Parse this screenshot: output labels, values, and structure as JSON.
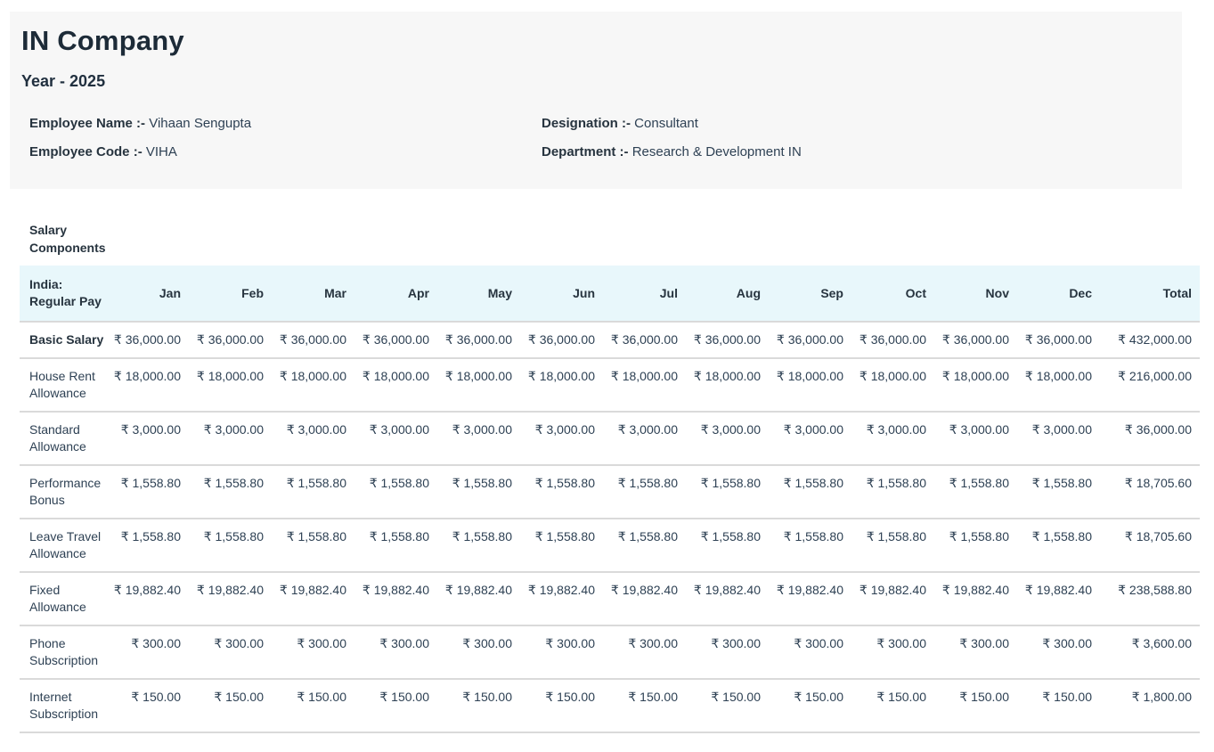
{
  "page": {
    "title": "IN Company",
    "subtitle": "Year - 2025"
  },
  "employee": {
    "name_label": "Employee Name :-",
    "name_value": "Vihaan Sengupta",
    "code_label": "Employee Code :-",
    "code_value": "VIHA",
    "designation_label": "Designation :-",
    "designation_value": "Consultant",
    "department_label": "Department :-",
    "department_value": "Research & Development IN"
  },
  "table": {
    "section_header": "Salary\nComponents",
    "group_header": "India:\nRegular Pay",
    "currency": "₹",
    "columns": [
      "Jan",
      "Feb",
      "Mar",
      "Apr",
      "May",
      "Jun",
      "Jul",
      "Aug",
      "Sep",
      "Oct",
      "Nov",
      "Dec",
      "Total"
    ],
    "rows": [
      {
        "label": "Basic Salary",
        "emphasis": true,
        "values": [
          "₹ 36,000.00",
          "₹ 36,000.00",
          "₹ 36,000.00",
          "₹ 36,000.00",
          "₹ 36,000.00",
          "₹ 36,000.00",
          "₹ 36,000.00",
          "₹ 36,000.00",
          "₹ 36,000.00",
          "₹ 36,000.00",
          "₹ 36,000.00",
          "₹ 36,000.00",
          "₹ 432,000.00"
        ]
      },
      {
        "label": "House Rent\nAllowance",
        "emphasis": false,
        "values": [
          "₹ 18,000.00",
          "₹ 18,000.00",
          "₹ 18,000.00",
          "₹ 18,000.00",
          "₹ 18,000.00",
          "₹ 18,000.00",
          "₹ 18,000.00",
          "₹ 18,000.00",
          "₹ 18,000.00",
          "₹ 18,000.00",
          "₹ 18,000.00",
          "₹ 18,000.00",
          "₹ 216,000.00"
        ]
      },
      {
        "label": "Standard\nAllowance",
        "emphasis": false,
        "values": [
          "₹ 3,000.00",
          "₹ 3,000.00",
          "₹ 3,000.00",
          "₹ 3,000.00",
          "₹ 3,000.00",
          "₹ 3,000.00",
          "₹ 3,000.00",
          "₹ 3,000.00",
          "₹ 3,000.00",
          "₹ 3,000.00",
          "₹ 3,000.00",
          "₹ 3,000.00",
          "₹ 36,000.00"
        ]
      },
      {
        "label": "Performance\nBonus",
        "emphasis": false,
        "values": [
          "₹ 1,558.80",
          "₹ 1,558.80",
          "₹ 1,558.80",
          "₹ 1,558.80",
          "₹ 1,558.80",
          "₹ 1,558.80",
          "₹ 1,558.80",
          "₹ 1,558.80",
          "₹ 1,558.80",
          "₹ 1,558.80",
          "₹ 1,558.80",
          "₹ 1,558.80",
          "₹ 18,705.60"
        ]
      },
      {
        "label": "Leave Travel\nAllowance",
        "emphasis": false,
        "values": [
          "₹ 1,558.80",
          "₹ 1,558.80",
          "₹ 1,558.80",
          "₹ 1,558.80",
          "₹ 1,558.80",
          "₹ 1,558.80",
          "₹ 1,558.80",
          "₹ 1,558.80",
          "₹ 1,558.80",
          "₹ 1,558.80",
          "₹ 1,558.80",
          "₹ 1,558.80",
          "₹ 18,705.60"
        ]
      },
      {
        "label": "Fixed\nAllowance",
        "emphasis": false,
        "values": [
          "₹ 19,882.40",
          "₹ 19,882.40",
          "₹ 19,882.40",
          "₹ 19,882.40",
          "₹ 19,882.40",
          "₹ 19,882.40",
          "₹ 19,882.40",
          "₹ 19,882.40",
          "₹ 19,882.40",
          "₹ 19,882.40",
          "₹ 19,882.40",
          "₹ 19,882.40",
          "₹ 238,588.80"
        ]
      },
      {
        "label": "Phone\nSubscription",
        "emphasis": false,
        "values": [
          "₹ 300.00",
          "₹ 300.00",
          "₹ 300.00",
          "₹ 300.00",
          "₹ 300.00",
          "₹ 300.00",
          "₹ 300.00",
          "₹ 300.00",
          "₹ 300.00",
          "₹ 300.00",
          "₹ 300.00",
          "₹ 300.00",
          "₹ 3,600.00"
        ]
      },
      {
        "label": "Internet\nSubscription",
        "emphasis": false,
        "values": [
          "₹ 150.00",
          "₹ 150.00",
          "₹ 150.00",
          "₹ 150.00",
          "₹ 150.00",
          "₹ 150.00",
          "₹ 150.00",
          "₹ 150.00",
          "₹ 150.00",
          "₹ 150.00",
          "₹ 150.00",
          "₹ 150.00",
          "₹ 1,800.00"
        ]
      }
    ]
  },
  "colors": {
    "header_band_bg": "#f7f7f7",
    "table_header_bg": "#e8f7fb",
    "row_divider": "#dadada",
    "text": "#2e4154",
    "title_text": "#1d2b38"
  }
}
